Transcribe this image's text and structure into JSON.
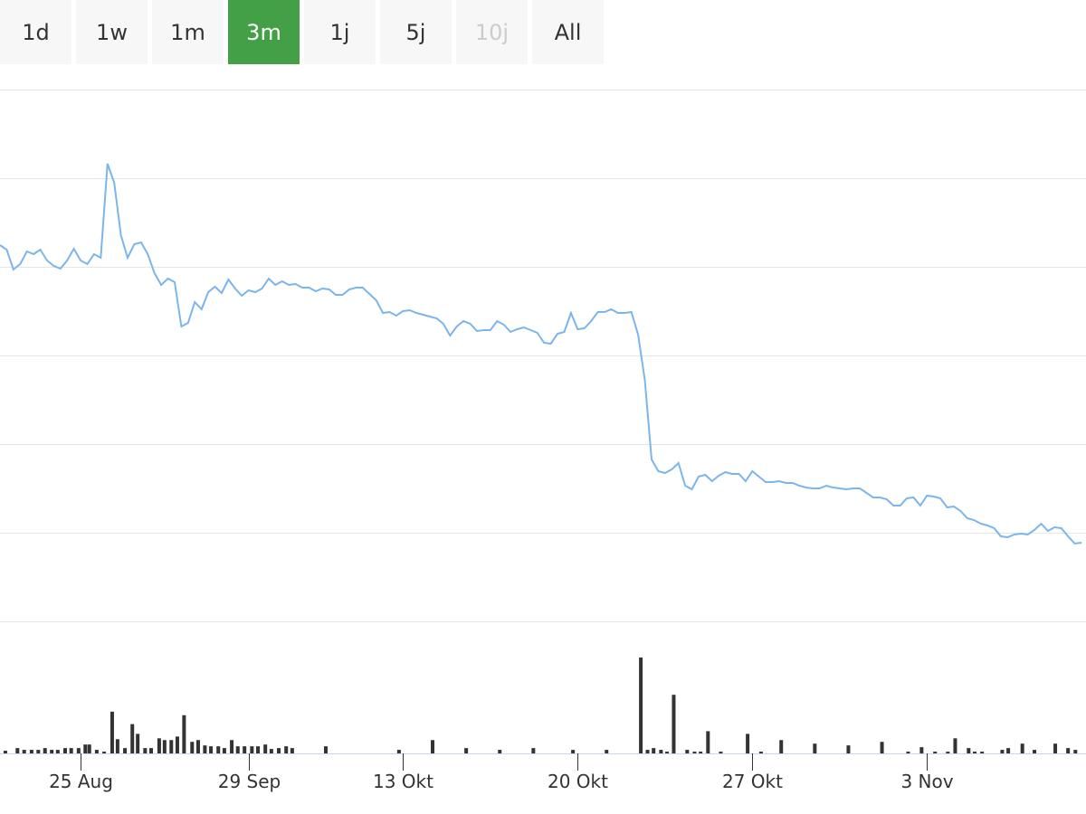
{
  "range_buttons": [
    "1d",
    "1w",
    "1m",
    "3m",
    "1j",
    "5j",
    "10j",
    "All"
  ],
  "selected_button": "3m",
  "disabled_buttons": [
    "10j"
  ],
  "chart_data": {
    "type": "line",
    "series": [
      {
        "color": "#7cb5ec",
        "values": [
          416,
          411,
          389,
          395,
          409,
          406,
          411,
          399,
          393,
          390,
          399,
          412,
          399,
          395,
          406,
          402,
          506,
          485,
          427,
          402,
          417,
          419,
          406,
          385,
          372,
          379,
          375,
          326,
          330,
          353,
          345,
          364,
          370,
          363,
          378,
          368,
          360,
          366,
          364,
          368,
          379,
          372,
          376,
          372,
          373,
          369,
          369,
          365,
          368,
          367,
          361,
          361,
          367,
          369,
          369,
          362,
          355,
          341,
          342,
          338,
          343,
          344,
          341,
          339,
          337,
          335,
          329,
          316,
          326,
          332,
          329,
          321,
          322,
          322,
          332,
          328,
          320,
          323,
          325,
          322,
          319,
          308,
          307,
          318,
          320,
          341,
          323,
          324,
          332,
          342,
          342,
          345,
          341,
          341,
          342,
          317,
          267,
          179,
          166,
          164,
          168,
          175,
          150,
          146,
          160,
          162,
          155,
          161,
          165,
          163,
          163,
          155,
          166,
          160,
          154,
          154,
          155,
          153,
          153,
          150,
          148,
          147,
          147,
          150,
          148,
          147,
          146,
          147,
          147,
          142,
          137,
          137,
          135,
          128,
          128,
          136,
          137,
          128,
          139,
          138,
          136,
          126,
          127,
          122,
          114,
          112,
          108,
          106,
          103,
          94,
          93,
          96,
          97,
          96,
          101,
          108,
          100,
          104,
          103,
          94,
          86,
          87
        ]
      }
    ],
    "xlim": [
      0,
      161
    ],
    "ylim": [
      0,
      588
    ],
    "yticks": [
      0,
      98,
      196,
      294,
      392,
      490,
      588
    ],
    "grid": true,
    "xticks": [
      {
        "value": 12,
        "label": "25 Aug"
      },
      {
        "value": 37,
        "label": "29 Sep"
      },
      {
        "value": 60,
        "label": "13 Okt"
      },
      {
        "value": 86,
        "label": "20 Okt"
      },
      {
        "value": 112,
        "label": "27 Okt"
      },
      {
        "value": 138,
        "label": "3 Nov"
      }
    ],
    "volume": {
      "color": "#333333",
      "ylim": [
        0,
        110
      ],
      "x": [
        0.8,
        2.6,
        3.6,
        4.7,
        5.7,
        6.7,
        7.7,
        8.6,
        9.7,
        10.6,
        11.7,
        12.7,
        13.3,
        14.4,
        15.5,
        16.7,
        17.5,
        18.6,
        19.7,
        20.5,
        21.6,
        22.5,
        23.7,
        24.5,
        25.5,
        26.4,
        27.4,
        28.6,
        29.5,
        30.5,
        31.4,
        32.5,
        33.4,
        34.5,
        35.4,
        36.4,
        37.5,
        38.4,
        39.5,
        40.4,
        41.5,
        42.6,
        43.5,
        48.5,
        59.4,
        64.4,
        69.4,
        74.4,
        79.4,
        85.3,
        90.3,
        95.4,
        96.4,
        97.3,
        98.4,
        99.3,
        100.3,
        102.3,
        103.4,
        104.3,
        105.4,
        107.3,
        111.3,
        113.3,
        116.3,
        121.3,
        126.3,
        131.3,
        135.2,
        137.2,
        139.2,
        141.1,
        142.2,
        144.2,
        145.1,
        146.2,
        149.2,
        150.1,
        152.2,
        154,
        157.1,
        159,
        160.1
      ],
      "values": [
        3,
        6,
        4,
        4,
        4,
        6,
        4,
        4,
        6,
        6,
        6,
        10,
        10,
        4,
        2,
        47,
        16,
        6,
        33,
        22,
        6,
        6,
        17,
        15,
        15,
        19,
        43,
        13,
        15,
        9,
        8,
        8,
        6,
        15,
        8,
        8,
        8,
        8,
        10,
        5,
        6,
        8,
        6,
        8,
        4,
        15,
        6,
        4,
        6,
        4,
        4,
        108,
        4,
        6,
        4,
        2,
        66,
        4,
        2,
        2,
        25,
        2,
        22,
        2,
        15,
        11,
        9,
        13,
        2,
        7,
        2,
        2,
        17,
        6,
        2,
        2,
        4,
        6,
        11,
        4,
        11,
        6,
        4
      ]
    }
  }
}
